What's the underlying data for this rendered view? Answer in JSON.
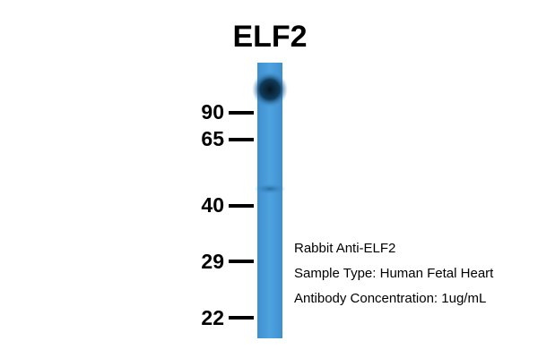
{
  "title": "ELF2",
  "markers": [
    "90",
    "65",
    "40",
    "29",
    "22"
  ],
  "annotations": [
    "Rabbit Anti-ELF2",
    "Sample Type: Human Fetal Heart",
    "Antibody Concentration: 1ug/mL"
  ]
}
